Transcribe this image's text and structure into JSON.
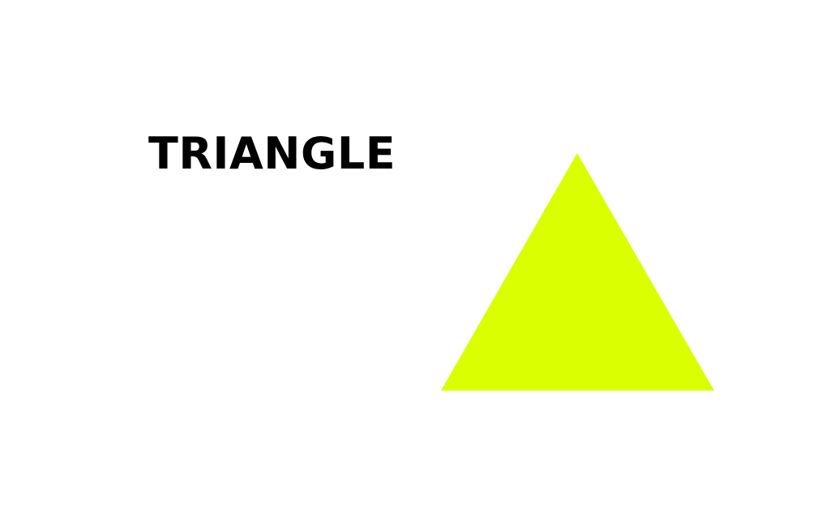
{
  "label": "TRIANGLE",
  "triangle": {
    "fill": "#DAFF00"
  }
}
